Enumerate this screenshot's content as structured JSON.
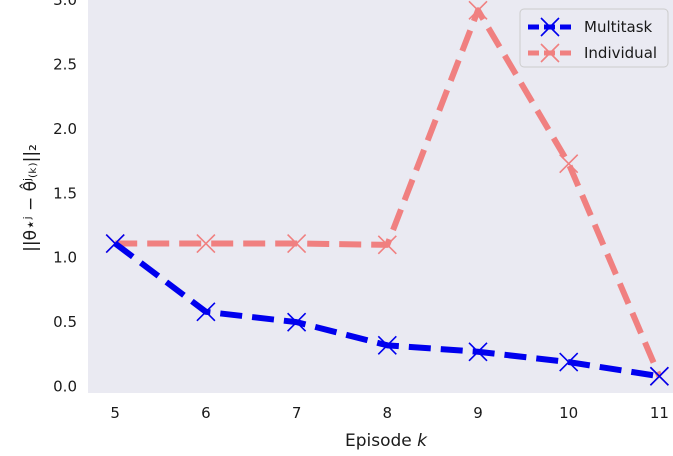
{
  "chart_data": {
    "type": "line",
    "x": [
      5,
      6,
      7,
      8,
      9,
      10,
      11
    ],
    "x_tick_labels": [
      "5",
      "6",
      "7",
      "8",
      "9",
      "10",
      "11"
    ],
    "y_tick_labels": [
      "0.0",
      "0.5",
      "1.0",
      "1.5",
      "2.0",
      "2.5",
      "3.0"
    ],
    "xlim": [
      4.7,
      11.15
    ],
    "ylim": [
      -0.05,
      3.0
    ],
    "xlabel": "Episode",
    "xlabel_var": "k",
    "ylabel": "||θ⋆ʲ − θ̂ʲ₍ₖ₎||₂",
    "grid": false,
    "background": "#eaeaf2",
    "legend_position": "top-right",
    "series": [
      {
        "name": "Multitask",
        "color": "#0000ee",
        "style": "dashed",
        "marker": "x",
        "values": [
          1.11,
          0.58,
          0.5,
          0.32,
          0.27,
          0.19,
          0.08
        ]
      },
      {
        "name": "Individual",
        "color": "#f08080",
        "style": "dashed",
        "marker": "x",
        "values": [
          1.11,
          1.11,
          1.11,
          1.1,
          2.92,
          1.73,
          0.08
        ]
      }
    ]
  }
}
